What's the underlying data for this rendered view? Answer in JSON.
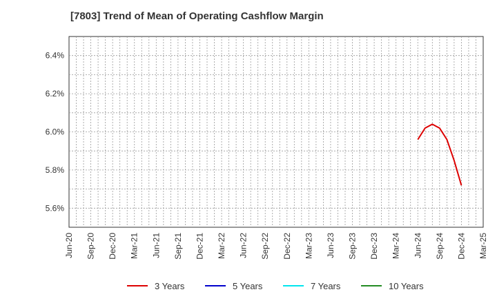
{
  "title": "[7803]  Trend of Mean of Operating Cashflow Margin",
  "chart_data": {
    "type": "line",
    "title": "[7803]  Trend of Mean of Operating Cashflow Margin",
    "xlabel": "",
    "ylabel": "",
    "x_ticks": [
      "Jun-20",
      "Sep-20",
      "Dec-20",
      "Mar-21",
      "Jun-21",
      "Sep-21",
      "Dec-21",
      "Mar-22",
      "Jun-22",
      "Sep-22",
      "Dec-22",
      "Mar-23",
      "Jun-23",
      "Sep-23",
      "Dec-23",
      "Mar-24",
      "Jun-24",
      "Sep-24",
      "Dec-24",
      "Mar-25"
    ],
    "y_ticks": [
      "5.6%",
      "5.8%",
      "6.0%",
      "6.2%",
      "6.4%"
    ],
    "y_tick_values": [
      5.6,
      5.8,
      6.0,
      6.2,
      6.4
    ],
    "ylim": [
      5.5,
      6.5
    ],
    "xlim": [
      "2020-06",
      "2025-03"
    ],
    "grid": true,
    "legend_position": "bottom",
    "series": [
      {
        "name": "3 Years",
        "color": "#dd0000",
        "x": [
          "2024-06",
          "2024-07",
          "2024-08",
          "2024-09",
          "2024-10",
          "2024-11",
          "2024-12"
        ],
        "y": [
          5.96,
          6.02,
          6.04,
          6.02,
          5.96,
          5.85,
          5.72
        ]
      },
      {
        "name": "5 Years",
        "color": "#0000cc",
        "x": [],
        "y": []
      },
      {
        "name": "7 Years",
        "color": "#00e5ee",
        "x": [],
        "y": []
      },
      {
        "name": "10 Years",
        "color": "#228b22",
        "x": [],
        "y": []
      }
    ]
  }
}
